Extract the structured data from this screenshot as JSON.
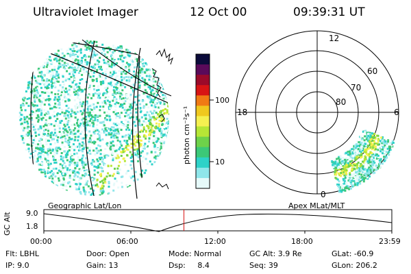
{
  "header": {
    "instrument": "Ultraviolet Imager",
    "date": "12 Oct 00",
    "time": "09:39:31 UT"
  },
  "colorbar": {
    "unit_label": "photon cm⁻²s⁻¹",
    "ticks": [
      "100",
      "10"
    ],
    "colors": [
      "#0b0b3a",
      "#5a0a5a",
      "#9b0a2a",
      "#d81414",
      "#f07a14",
      "#f0c81e",
      "#f5f050",
      "#b6e636",
      "#6ed24a",
      "#3cc878",
      "#2ed2c8",
      "#8fe6ea",
      "#e6fafa"
    ]
  },
  "polar_plot": {
    "mlt_labels": [
      "12",
      "18",
      "6",
      "0"
    ],
    "lat_labels": [
      "60",
      "70",
      "80"
    ]
  },
  "panel_labels": {
    "left": "Geographic Lat/Lon",
    "right": "Apex MLat/MLT"
  },
  "timeline": {
    "axis_label": "GC Alt",
    "y_top": "9.0",
    "y_bottom": "1.8",
    "x_ticks": [
      "00:00",
      "06:00",
      "12:00",
      "18:00",
      "23:59"
    ],
    "current_time_hours": 9.66
  },
  "footer": {
    "flt": "Flt: LBHL",
    "ip": "IP:  9.0",
    "door": "Door: Open",
    "gain": "Gain: 13",
    "mode": "Mode: Normal",
    "dsp": "Dsp:     8.4",
    "gc_alt": "GC Alt: 3.9 Re",
    "seq": "Seq: 39",
    "glat": "GLat: -60.9",
    "glon": "GLon: 206.2"
  }
}
